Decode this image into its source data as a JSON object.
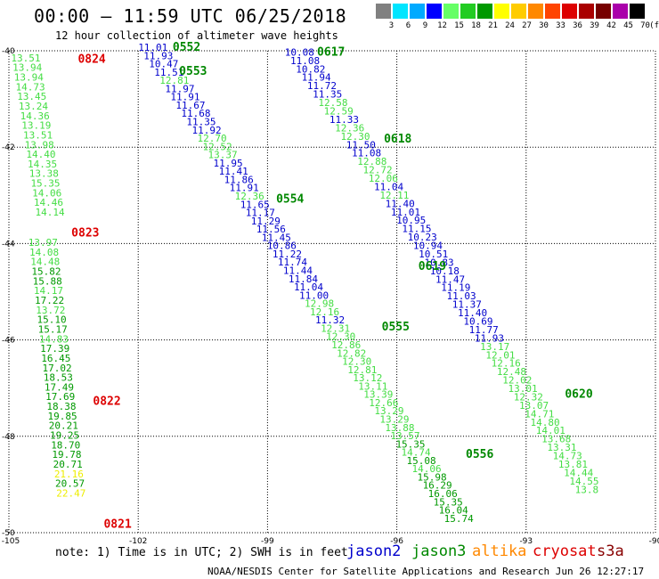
{
  "title": "00:00 – 11:59 UTC 06/25/2018",
  "subtitle": "12 hour collection of altimeter wave heights",
  "color_scale": {
    "unit_label": "(ft)",
    "labels": [
      "3",
      "6",
      "9",
      "12",
      "15",
      "18",
      "21",
      "24",
      "27",
      "30",
      "33",
      "36",
      "39",
      "42",
      "45",
      "70"
    ],
    "colors": [
      "#808080",
      "#00e5ff",
      "#00aaff",
      "#0000ff",
      "#66ff66",
      "#22cc22",
      "#009900",
      "#ffff00",
      "#ffcc00",
      "#ff8800",
      "#ff4400",
      "#dd0000",
      "#aa0000",
      "#770000",
      "#aa00aa",
      "#000000"
    ]
  },
  "note": "note: 1) Time is in UTC; 2) SWH is in feet",
  "satellites": [
    {
      "name": "jason2",
      "color": "#0000cc"
    },
    {
      "name": "jason3",
      "color": "#008800"
    },
    {
      "name": "altika",
      "color": "#ff8800"
    },
    {
      "name": "cryosat",
      "color": "#dd0000"
    },
    {
      "name": "s3a",
      "color": "#880000"
    }
  ],
  "footer": "NOAA/NESDIS Center for Satellite Applications and Research   Jun 26 12:27:17 UTC 2018",
  "chart_data": {
    "type": "scatter",
    "xlim": [
      -105,
      -90
    ],
    "ylim": [
      -50,
      -40
    ],
    "x_ticks": [
      "-105",
      "-102",
      "-99",
      "-96",
      "-93",
      "-90"
    ],
    "y_ticks": [
      "-40",
      "-42",
      "-44",
      "-46",
      "-48",
      "-50"
    ],
    "grid": true,
    "colors": {
      "lightgreen": "#44dd44",
      "green": "#009900",
      "blue": "#0000cc",
      "yellow": "#eeee00"
    },
    "tracks": [
      {
        "label": "0824",
        "color": "#dd0000",
        "x": -103.4,
        "y": -40.25,
        "values": [
          "13.51",
          "13.94",
          "13.94",
          "14.73",
          "13.45",
          "13.24",
          "14.36",
          "13.19",
          "13.51",
          "13.98",
          "14.40",
          "14.35",
          "13.38",
          "15.35",
          "14.06",
          "14.46",
          "14.14"
        ],
        "value_colors": [
          "lightgreen"
        ],
        "x_start": -104.95,
        "x_step": 0.035,
        "y_start": -40.22,
        "y_step": 0.2
      },
      {
        "label": "0823",
        "color": "#dd0000",
        "x": -103.55,
        "y": -43.85,
        "values": [
          "13.97",
          "14.08",
          "14.48",
          "15.82",
          "15.88",
          "14.17",
          "17.22",
          "13.72",
          "15.10",
          "15.17",
          "14.83",
          "17.39",
          "16.45",
          "17.02",
          "18.53",
          "17.49",
          "17.69",
          "18.38",
          "19.85",
          "20.21",
          "19.25",
          "18.70",
          "19.78",
          "20.71",
          "21.16",
          "20.57",
          "22.47"
        ],
        "value_colors": [
          "lightgreen",
          "lightgreen",
          "lightgreen",
          "green",
          "green",
          "lightgreen",
          "green",
          "lightgreen",
          "green",
          "green",
          "lightgreen",
          "green",
          "green",
          "green",
          "green",
          "green",
          "green",
          "green",
          "green",
          "green",
          "green",
          "green",
          "green",
          "green",
          "yellow",
          "green",
          "yellow"
        ],
        "x_start": -104.55,
        "x_step": 0.025,
        "y_start": -44.05,
        "y_step": 0.2
      },
      {
        "label": "0822",
        "color": "#dd0000",
        "x": -103.05,
        "y": -47.35
      },
      {
        "label": "0821",
        "color": "#dd0000",
        "x": -102.8,
        "y": -49.9
      },
      {
        "label": "0552",
        "color": "#008800",
        "x": -101.2,
        "y": -40.0,
        "values": [
          "11.01",
          "11.93",
          "10.47",
          "11.51",
          "12.81",
          "11.97",
          "11.91",
          "11.67",
          "11.68",
          "11.35",
          "11.92",
          "12.70",
          "12.52",
          "13.37",
          "11.95",
          "11.41",
          "11.86",
          "11.91",
          "12.36",
          "11.65",
          "11.17",
          "11.29",
          "11.56",
          "11.45",
          "10.86",
          "11.22",
          "11.74",
          "11.44",
          "11.84",
          "11.04",
          "11.00",
          "12.98",
          "12.16",
          "11.32",
          "12.31",
          "12.30",
          "12.86",
          "12.82",
          "12.30",
          "12.81",
          "13.12",
          "13.11",
          "13.39",
          "12.66",
          "13.29",
          "13.29",
          "13.88",
          "13.57",
          "15.35",
          "14.74",
          "15.08",
          "14.06",
          "15.98",
          "16.29",
          "16.06",
          "15.35",
          "16.04",
          "15.74"
        ],
        "value_colors": [
          "blue",
          "blue",
          "blue",
          "blue",
          "lightgreen",
          "blue",
          "blue",
          "blue",
          "blue",
          "blue",
          "blue",
          "lightgreen",
          "lightgreen",
          "lightgreen",
          "blue",
          "blue",
          "blue",
          "blue",
          "lightgreen",
          "blue",
          "blue",
          "blue",
          "blue",
          "blue",
          "blue",
          "blue",
          "blue",
          "blue",
          "blue",
          "blue",
          "blue",
          "lightgreen",
          "lightgreen",
          "blue",
          "lightgreen",
          "lightgreen",
          "lightgreen",
          "lightgreen",
          "lightgreen",
          "lightgreen",
          "lightgreen",
          "lightgreen",
          "lightgreen",
          "lightgreen",
          "lightgreen",
          "lightgreen",
          "lightgreen",
          "lightgreen",
          "green",
          "lightgreen",
          "green",
          "lightgreen",
          "green",
          "green",
          "green",
          "green",
          "green",
          "green"
        ],
        "x_start": -102.0,
        "x_step": 0.1245,
        "y_start": -40.0,
        "y_step": 0.1715
      },
      {
        "label": "0553",
        "color": "#008800",
        "x": -101.05,
        "y": -40.5
      },
      {
        "label": "0554",
        "color": "#008800",
        "x": -98.8,
        "y": -43.15
      },
      {
        "label": "0555",
        "color": "#008800",
        "x": -96.35,
        "y": -45.8
      },
      {
        "label": "0556",
        "color": "#008800",
        "x": -94.4,
        "y": -48.45
      },
      {
        "label": "0617",
        "color": "#008800",
        "x": -97.85,
        "y": -40.1,
        "values": [
          "10.08",
          "11.08",
          "10.82",
          "11.94",
          "11.72",
          "11.35",
          "12.58",
          "12.59",
          "11.33",
          "12.36",
          "12.30",
          "11.50",
          "11.08",
          "12.88",
          "12.72",
          "12.06",
          "11.04",
          "12.11",
          "11.40",
          "11.01",
          "10.95",
          "11.15",
          "10.23",
          "10.94",
          "10.51",
          "10.83",
          "10.18",
          "11.47",
          "11.19",
          "11.03",
          "11.37",
          "11.40",
          "10.69",
          "11.77",
          "11.93",
          "13.17",
          "12.01",
          "12.16",
          "12.48",
          "12.02",
          "13.01",
          "12.32",
          "13.07",
          "14.71",
          "14.80",
          "14.01",
          "13.68",
          "13.31",
          "14.73",
          "13.81",
          "14.44",
          "14.55",
          "13.8"
        ],
        "value_colors": [
          "blue",
          "blue",
          "blue",
          "blue",
          "blue",
          "blue",
          "lightgreen",
          "lightgreen",
          "blue",
          "lightgreen",
          "lightgreen",
          "blue",
          "blue",
          "lightgreen",
          "lightgreen",
          "lightgreen",
          "blue",
          "lightgreen",
          "blue",
          "blue",
          "blue",
          "blue",
          "blue",
          "blue",
          "blue",
          "blue",
          "blue",
          "blue",
          "blue",
          "blue",
          "blue",
          "blue",
          "blue",
          "blue",
          "blue",
          "lightgreen",
          "lightgreen",
          "lightgreen",
          "lightgreen",
          "lightgreen",
          "lightgreen",
          "lightgreen",
          "lightgreen",
          "lightgreen",
          "lightgreen",
          "lightgreen",
          "lightgreen",
          "lightgreen",
          "lightgreen",
          "lightgreen",
          "lightgreen",
          "lightgreen",
          "lightgreen"
        ],
        "x_start": -98.6,
        "x_step": 0.1295,
        "y_start": -40.1,
        "y_step": 0.1745
      },
      {
        "label": "0618",
        "color": "#008800",
        "x": -96.3,
        "y": -41.9
      },
      {
        "label": "0619",
        "color": "#008800",
        "x": -95.5,
        "y": -44.55
      },
      {
        "label": "0620",
        "color": "#008800",
        "x": -92.1,
        "y": -47.2
      }
    ]
  }
}
